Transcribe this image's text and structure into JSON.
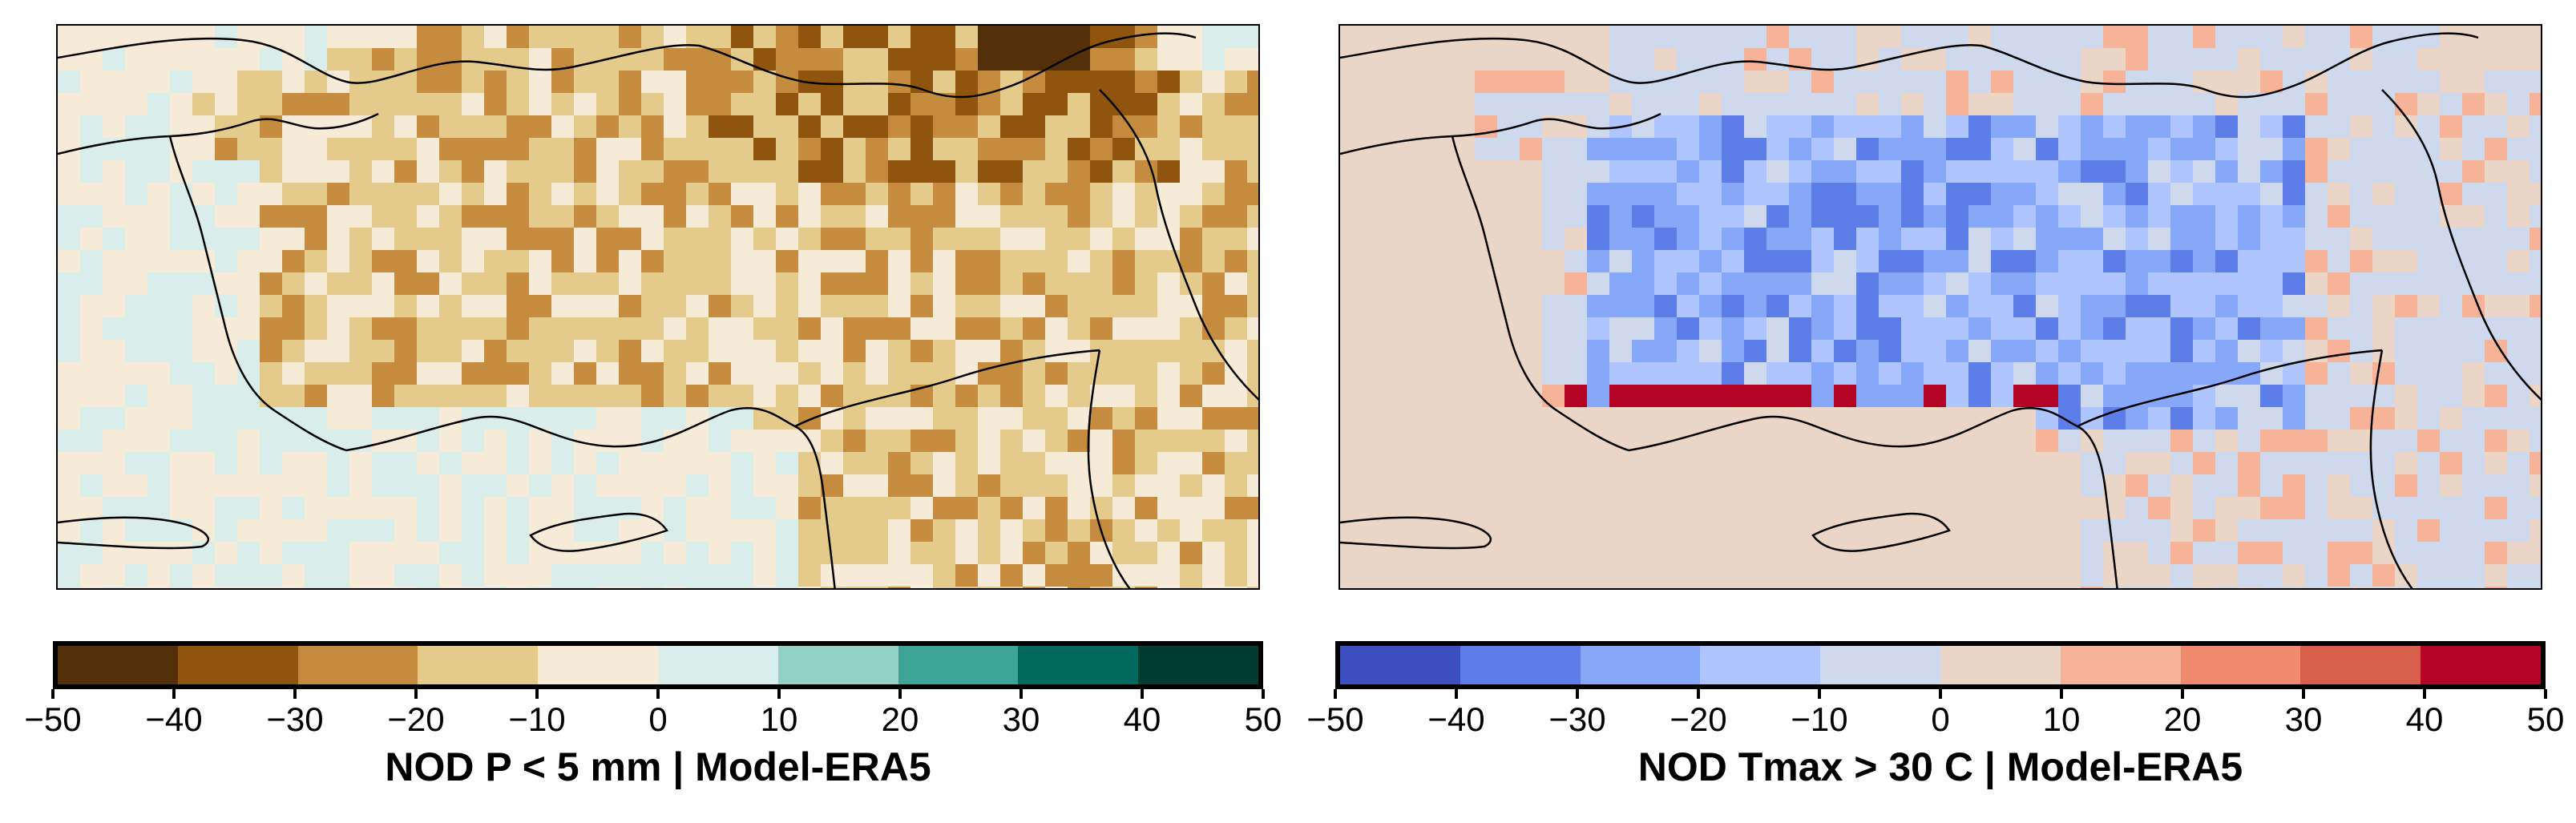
{
  "panels": [
    {
      "id": "precip",
      "title": "NOD P < 5 mm | Model-ERA5",
      "colorbar": {
        "ticks": [
          "−50",
          "−40",
          "−30",
          "−20",
          "−10",
          "0",
          "10",
          "20",
          "30",
          "40",
          "50"
        ],
        "colors": [
          "#54300a",
          "#8f550e",
          "#c58b3e",
          "#e4ca8b",
          "#f6ebd7",
          "#d9eeeb",
          "#90d3c5",
          "#3ea497",
          "#03695f",
          "#003c30"
        ]
      }
    },
    {
      "id": "tmax",
      "title": "NOD Tmax > 30 C | Model-ERA5",
      "colorbar": {
        "ticks": [
          "−50",
          "−40",
          "−30",
          "−20",
          "−10",
          "0",
          "10",
          "20",
          "30",
          "40",
          "50"
        ],
        "colors": [
          "#3d4ec1",
          "#5d7ee8",
          "#87a8f9",
          "#aec6fd",
          "#cfd9ed",
          "#ebd5c6",
          "#f6b397",
          "#ef8a6c",
          "#d75f4c",
          "#b40426"
        ]
      }
    }
  ]
}
